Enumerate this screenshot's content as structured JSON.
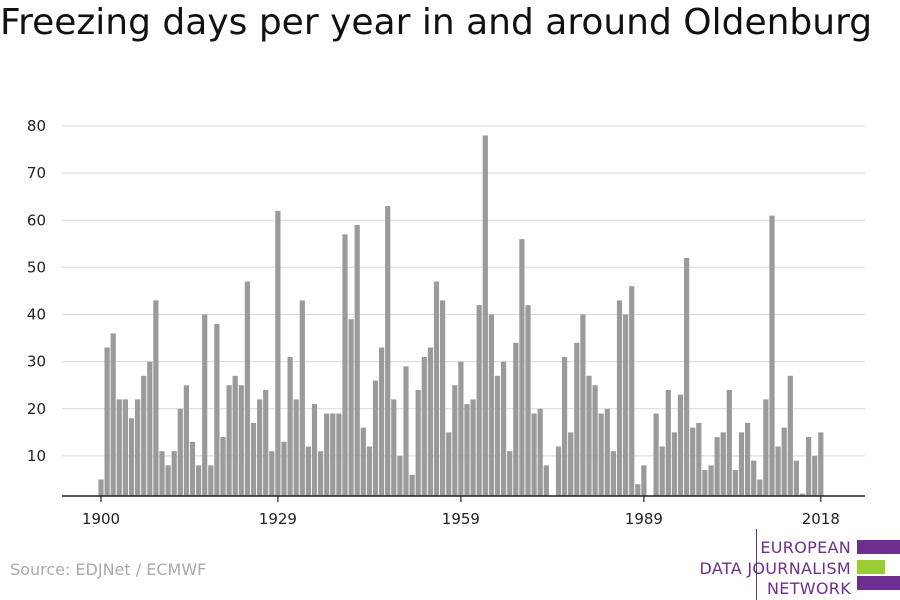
{
  "title": "Freezing days per year in and around Oldenburg",
  "source": "Source: EDJNet / ECMWF",
  "logo": {
    "lines": [
      "EUROPEAN",
      "DATA JOURNALISM",
      "NETWORK"
    ],
    "colors": {
      "purple": "#6b2f8e",
      "green": "#9acd32"
    }
  },
  "chart_data": {
    "type": "bar",
    "x": [
      1900,
      1901,
      1902,
      1903,
      1904,
      1905,
      1906,
      1907,
      1908,
      1909,
      1910,
      1911,
      1912,
      1913,
      1914,
      1915,
      1916,
      1917,
      1918,
      1919,
      1920,
      1921,
      1922,
      1923,
      1924,
      1925,
      1926,
      1927,
      1928,
      1929,
      1930,
      1931,
      1932,
      1933,
      1934,
      1935,
      1936,
      1937,
      1938,
      1939,
      1940,
      1941,
      1942,
      1943,
      1944,
      1945,
      1946,
      1947,
      1948,
      1949,
      1950,
      1951,
      1952,
      1953,
      1954,
      1955,
      1956,
      1957,
      1958,
      1959,
      1960,
      1961,
      1962,
      1963,
      1964,
      1965,
      1966,
      1967,
      1968,
      1969,
      1970,
      1971,
      1972,
      1973,
      1974,
      1975,
      1976,
      1977,
      1978,
      1979,
      1980,
      1981,
      1982,
      1983,
      1984,
      1985,
      1986,
      1987,
      1988,
      1989,
      1990,
      1991,
      1992,
      1993,
      1994,
      1995,
      1996,
      1997,
      1998,
      1999,
      2000,
      2001,
      2002,
      2003,
      2004,
      2005,
      2006,
      2007,
      2008,
      2009,
      2010,
      2011,
      2012,
      2013,
      2014,
      2015,
      2016,
      2017,
      2018
    ],
    "values": [
      5,
      33,
      36,
      22,
      22,
      18,
      22,
      27,
      30,
      43,
      11,
      8,
      11,
      20,
      25,
      13,
      8,
      40,
      8,
      38,
      14,
      25,
      27,
      25,
      47,
      17,
      22,
      24,
      11,
      62,
      13,
      31,
      22,
      43,
      12,
      21,
      11,
      19,
      19,
      19,
      57,
      39,
      59,
      16,
      12,
      26,
      33,
      63,
      22,
      10,
      29,
      6,
      24,
      31,
      33,
      47,
      43,
      15,
      25,
      30,
      21,
      22,
      42,
      78,
      40,
      27,
      30,
      11,
      34,
      56,
      42,
      19,
      20,
      8,
      0,
      12,
      31,
      15,
      34,
      40,
      27,
      25,
      19,
      20,
      11,
      43,
      40,
      46,
      4,
      8,
      0,
      19,
      12,
      24,
      15,
      23,
      52,
      16,
      17,
      7,
      8,
      14,
      15,
      24,
      7,
      15,
      17,
      9,
      5,
      22,
      61,
      12,
      16,
      27,
      9,
      2,
      14,
      10,
      15
    ],
    "x_ticks": [
      "1900",
      "1929",
      "1959",
      "1989",
      "2018"
    ],
    "y_ticks": [
      "10",
      "20",
      "30",
      "40",
      "50",
      "60",
      "70",
      "80"
    ],
    "ylim": [
      1.5,
      82
    ],
    "grid": true,
    "bar_color": "#9a9a9a"
  }
}
